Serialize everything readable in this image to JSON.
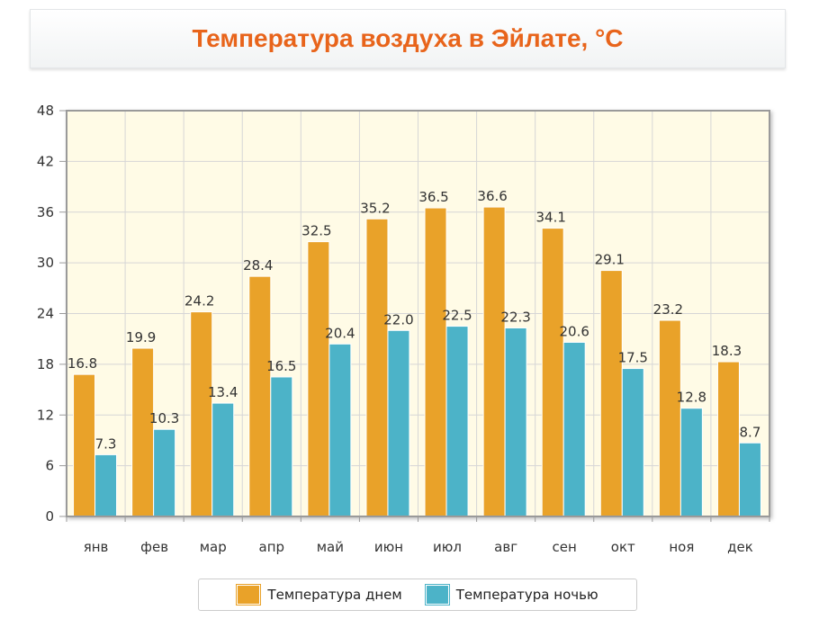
{
  "chart_data": {
    "type": "bar",
    "title": "Температура воздуха в Эйлате, °C",
    "categories": [
      "янв",
      "фев",
      "мар",
      "апр",
      "май",
      "июн",
      "июл",
      "авг",
      "сен",
      "окт",
      "ноя",
      "дек"
    ],
    "series": [
      {
        "name": "Температура днем",
        "color": "#e9a229",
        "values": [
          16.8,
          19.9,
          24.2,
          28.4,
          32.5,
          35.2,
          36.5,
          36.6,
          34.1,
          29.1,
          23.2,
          18.3
        ],
        "labels": [
          "16.8",
          "19.9",
          "24.2",
          "28.4",
          "32.5",
          "35.2",
          "36.5",
          "36.6",
          "34.1",
          "29.1",
          "23.2",
          "18.3"
        ]
      },
      {
        "name": "Температура ночью",
        "color": "#4cb3c8",
        "values": [
          7.3,
          10.3,
          13.4,
          16.5,
          20.4,
          22.0,
          22.5,
          22.3,
          20.6,
          17.5,
          12.8,
          8.7
        ],
        "labels": [
          "7.3",
          "10.3",
          "13.4",
          "16.5",
          "20.4",
          "22.0",
          "22.5",
          "22.3",
          "20.6",
          "17.5",
          "12.8",
          "8.7"
        ]
      }
    ],
    "ylim": [
      0,
      48
    ],
    "yticks": [
      0,
      6,
      12,
      18,
      24,
      30,
      36,
      42,
      48
    ],
    "grid": true,
    "legend": "bottom-center",
    "plot_background": "#fffbe6"
  }
}
